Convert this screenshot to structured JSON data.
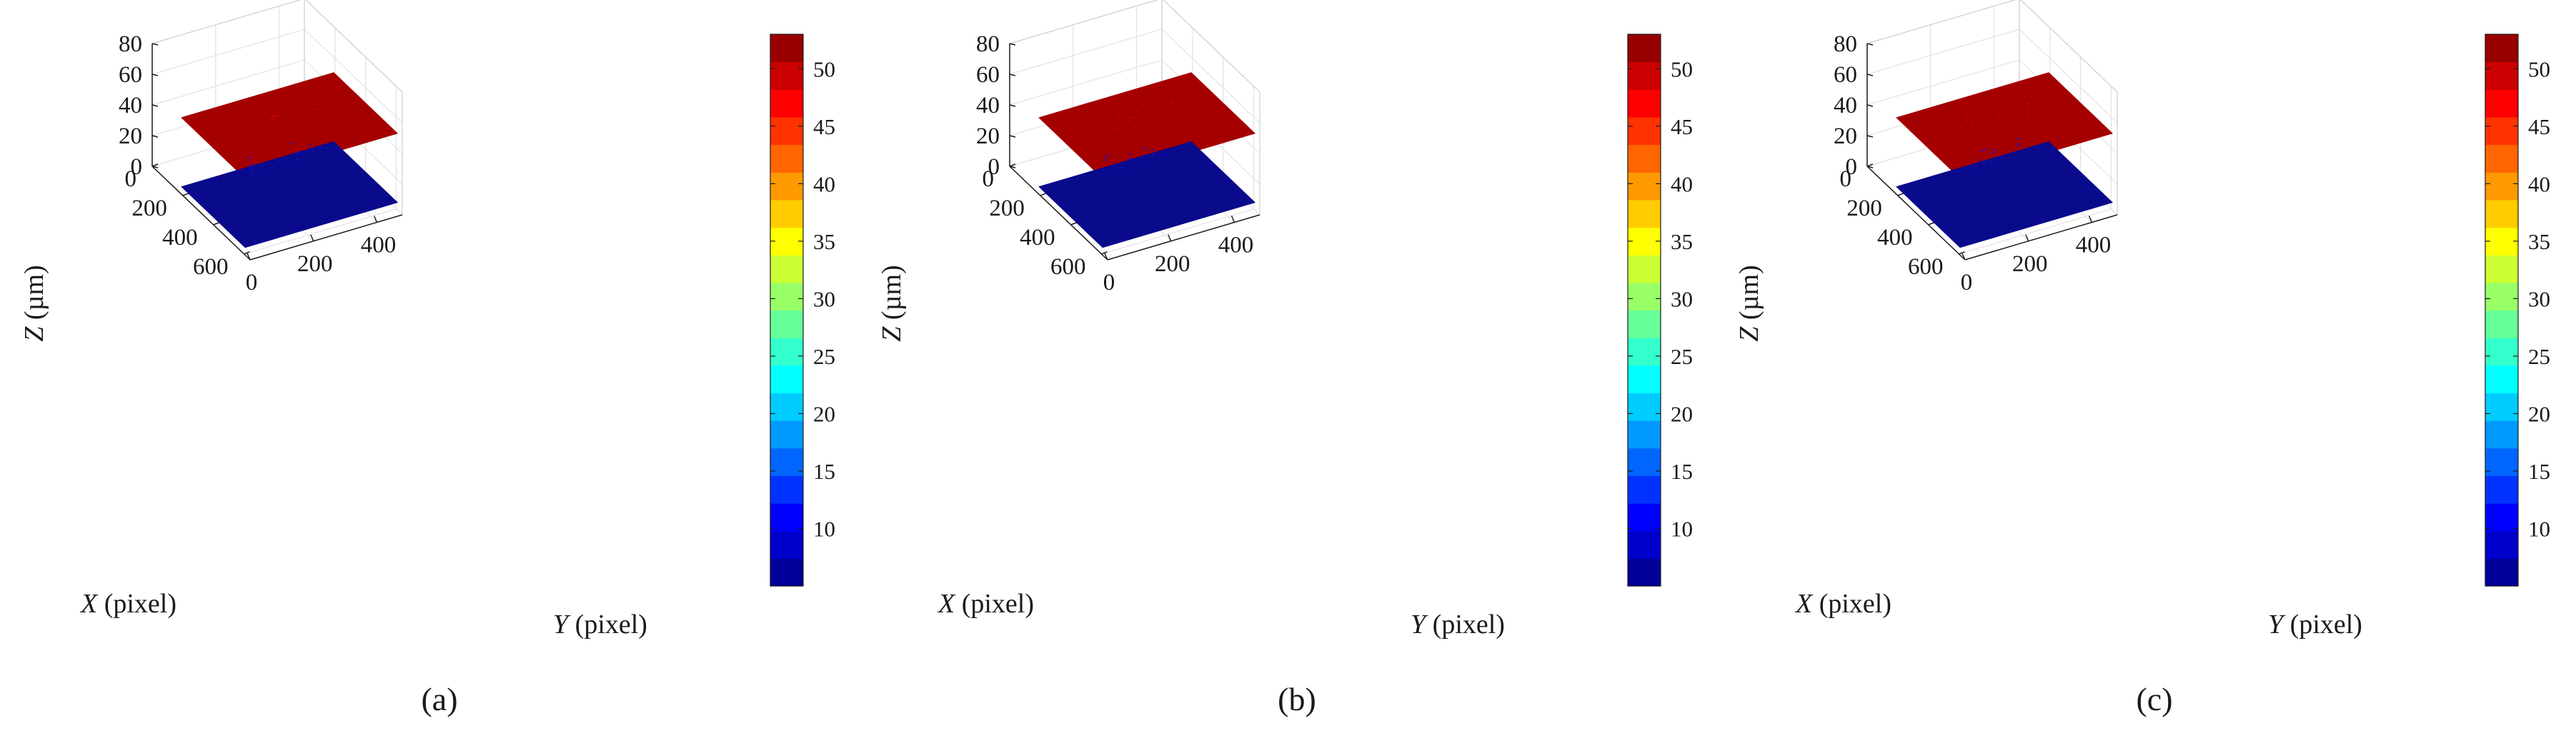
{
  "figure": {
    "panel_labels": [
      "(a)",
      "(b)",
      "(c)"
    ]
  },
  "chart_data": [
    {
      "type": "surface3d",
      "panel_label": "(a)",
      "xlabel": "X (pixel)",
      "ylabel": "Y (pixel)",
      "zlabel": "Z (µm)",
      "xlabel_var": "X",
      "ylabel_var": "Y",
      "zlabel_var": "Z",
      "xlabel_unit": " (pixel)",
      "ylabel_unit": " (pixel)",
      "zlabel_unit": " (µm)",
      "xlim": [
        0,
        640
      ],
      "ylim": [
        0,
        480
      ],
      "zlim": [
        0,
        80
      ],
      "xticks": [
        0,
        200,
        400,
        600
      ],
      "yticks": [
        0,
        200,
        400
      ],
      "zticks": [
        0,
        20,
        40,
        60,
        80
      ],
      "surfaces": [
        {
          "name": "upper plane",
          "z": 50,
          "color": "#a50000"
        },
        {
          "name": "lower plane",
          "z": 5,
          "color": "#0a0a8c"
        }
      ],
      "colorbar": {
        "min": 5,
        "max": 53,
        "ticks": [
          10,
          15,
          20,
          25,
          30,
          35,
          40,
          45,
          50
        ],
        "colormap": "jet",
        "levels": 20
      }
    },
    {
      "type": "surface3d",
      "panel_label": "(b)",
      "xlabel": "X (pixel)",
      "ylabel": "Y (pixel)",
      "zlabel": "Z (µm)",
      "xlabel_var": "X",
      "ylabel_var": "Y",
      "zlabel_var": "Z",
      "xlabel_unit": " (pixel)",
      "ylabel_unit": " (pixel)",
      "zlabel_unit": " (µm)",
      "xlim": [
        0,
        640
      ],
      "ylim": [
        0,
        480
      ],
      "zlim": [
        0,
        80
      ],
      "xticks": [
        0,
        200,
        400,
        600
      ],
      "yticks": [
        0,
        200,
        400
      ],
      "zticks": [
        0,
        20,
        40,
        60,
        80
      ],
      "surfaces": [
        {
          "name": "upper plane",
          "z": 50,
          "color": "#a50000"
        },
        {
          "name": "lower plane",
          "z": 5,
          "color": "#0a0a8c"
        }
      ],
      "colorbar": {
        "min": 5,
        "max": 53,
        "ticks": [
          10,
          15,
          20,
          25,
          30,
          35,
          40,
          45,
          50
        ],
        "colormap": "jet",
        "levels": 20
      }
    },
    {
      "type": "surface3d",
      "panel_label": "(c)",
      "xlabel": "X (pixel)",
      "ylabel": "Y (pixel)",
      "zlabel": "Z (µm)",
      "xlabel_var": "X",
      "ylabel_var": "Y",
      "zlabel_var": "Z",
      "xlabel_unit": " (pixel)",
      "ylabel_unit": " (pixel)",
      "zlabel_unit": " (µm)",
      "xlim": [
        0,
        640
      ],
      "ylim": [
        0,
        480
      ],
      "zlim": [
        0,
        80
      ],
      "xticks": [
        0,
        200,
        400,
        600
      ],
      "yticks": [
        0,
        200,
        400
      ],
      "zticks": [
        0,
        20,
        40,
        60,
        80
      ],
      "surfaces": [
        {
          "name": "upper plane",
          "z": 50,
          "color": "#a50000"
        },
        {
          "name": "lower plane",
          "z": 5,
          "color": "#0a0a8c"
        }
      ],
      "colorbar": {
        "min": 5,
        "max": 53,
        "ticks": [
          10,
          15,
          20,
          25,
          30,
          35,
          40,
          45,
          50
        ],
        "colormap": "jet",
        "levels": 20
      }
    }
  ]
}
